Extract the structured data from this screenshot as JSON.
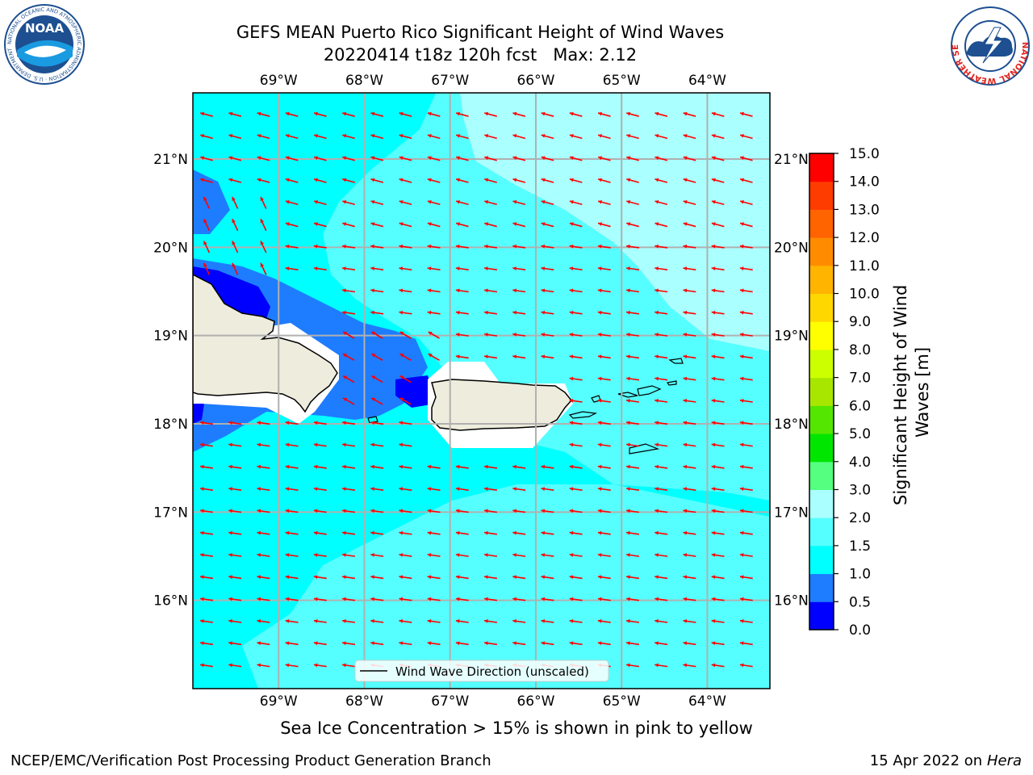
{
  "title": {
    "line1": "GEFS MEAN Puerto Rico Significant Height of Wind Waves",
    "line2": "20220414 t18z 120h fcst   Max: 2.12"
  },
  "map": {
    "lon_labels": [
      "69°W",
      "68°W",
      "67°W",
      "66°W",
      "65°W",
      "64°W"
    ],
    "lat_labels": [
      "21°N",
      "20°N",
      "19°N",
      "18°N",
      "17°N",
      "16°N"
    ],
    "lon_values": [
      -69,
      -68,
      -67,
      -66,
      -65,
      -64
    ],
    "lat_values": [
      21,
      20,
      19,
      18,
      17,
      16
    ],
    "legend_label": "Wind Wave Direction (unscaled)",
    "field_max": 2.12
  },
  "colorbar": {
    "label": "Significant Height of Wind Waves [m]",
    "label_line1": "Significant Height of Wind",
    "label_line2": "Waves [m]",
    "tick_labels": [
      "15.0",
      "14.0",
      "13.0",
      "12.0",
      "11.0",
      "10.0",
      "9.0",
      "8.0",
      "7.0",
      "6.0",
      "5.0",
      "4.0",
      "3.0",
      "2.0",
      "1.5",
      "1.0",
      "0.5",
      "0.0"
    ],
    "levels": [
      0,
      0.5,
      1.0,
      1.5,
      2.0,
      3.0,
      4.0,
      5.0,
      6.0,
      7.0,
      8.0,
      9.0,
      10.0,
      11.0,
      12.0,
      13.0,
      14.0,
      15.0
    ],
    "colors": [
      "#0000ff",
      "#1e7cff",
      "#00ffff",
      "#55ffff",
      "#aaffff",
      "#55ff80",
      "#00e600",
      "#54e600",
      "#a8e600",
      "#ccff00",
      "#ffff00",
      "#ffd700",
      "#ffb400",
      "#ff8c00",
      "#ff6400",
      "#ff3c00",
      "#ff0000"
    ]
  },
  "caption": "Sea Ice Concentration > 15% is shown in pink to yellow",
  "footer": {
    "left": "NCEP/EMC/Verification Post Processing Product Generation Branch",
    "right_prefix": "15 Apr 2022 on ",
    "right_host": "Hera"
  },
  "logos": {
    "noaa_text": "NOAA",
    "noaa_ring": "NATIONAL OCEANIC AND ATMOSPHERIC ADMINISTRATION · U.S. DEPARTMENT OF COMMERCE ·",
    "nws_ring": "NATIONAL WEATHER SERVICE"
  },
  "colors": {
    "land": "#eeecdc",
    "arrow": "#ff0000",
    "grid": "#b0b0b0"
  }
}
